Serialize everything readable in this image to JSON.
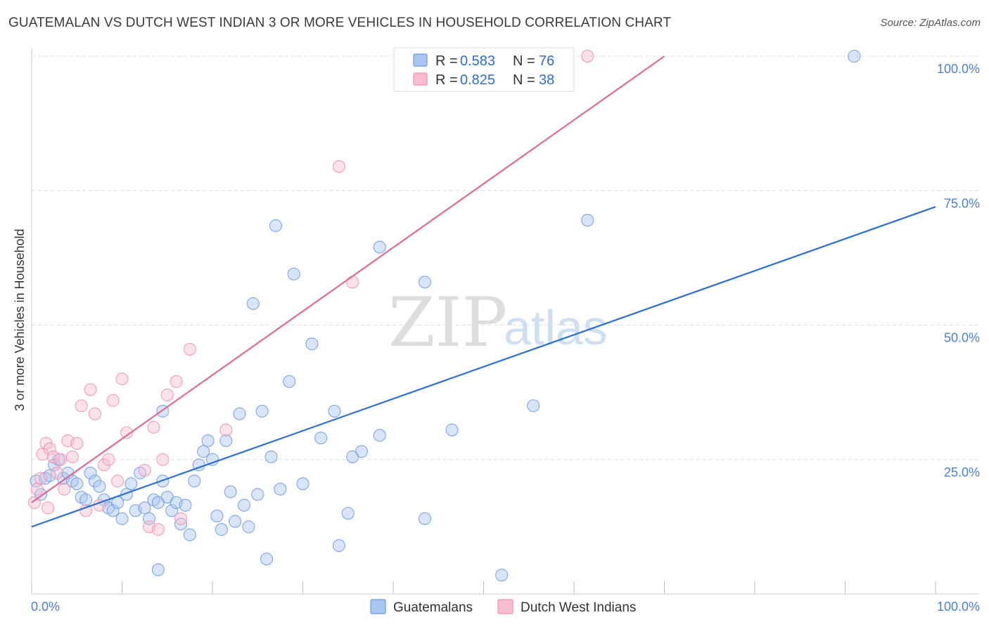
{
  "title": "GUATEMALAN VS DUTCH WEST INDIAN 3 OR MORE VEHICLES IN HOUSEHOLD CORRELATION CHART",
  "source": "Source: ZipAtlas.com",
  "watermark": {
    "zip": "ZIP",
    "atlas": "atlas"
  },
  "chart_data": {
    "type": "scatter",
    "xlabel": "",
    "ylabel": "3 or more Vehicles in Household",
    "xlim": [
      0,
      100
    ],
    "ylim": [
      0,
      100
    ],
    "x_tick_labels": {
      "left": "0.0%",
      "right": "100.0%"
    },
    "y_ticks": [
      {
        "value": 25,
        "label": "25.0%"
      },
      {
        "value": 50,
        "label": "50.0%"
      },
      {
        "value": 75,
        "label": "75.0%"
      },
      {
        "value": 100,
        "label": "100.0%"
      }
    ],
    "grid": true,
    "legend_position": "top-center",
    "series": [
      {
        "name": "Guatemalans",
        "color": "#6a9ae0",
        "fill": "#a8c6f0",
        "line_color": "#2b6fd0",
        "R": "0.583",
        "N": "76",
        "trend": {
          "x0": 0,
          "y0": 12.5,
          "x1": 100,
          "y1": 72
        },
        "points": [
          [
            0.5,
            21
          ],
          [
            1.0,
            18.5
          ],
          [
            1.5,
            21.5
          ],
          [
            2.0,
            22
          ],
          [
            2.5,
            24
          ],
          [
            3.0,
            25
          ],
          [
            3.5,
            21.5
          ],
          [
            4.0,
            22.5
          ],
          [
            4.5,
            21
          ],
          [
            5.0,
            20.5
          ],
          [
            5.5,
            18
          ],
          [
            6.0,
            17.5
          ],
          [
            6.5,
            22.5
          ],
          [
            7.0,
            21
          ],
          [
            7.5,
            20
          ],
          [
            8.0,
            17.5
          ],
          [
            8.5,
            16
          ],
          [
            9.0,
            15.5
          ],
          [
            9.5,
            17
          ],
          [
            10.0,
            14
          ],
          [
            10.5,
            18.5
          ],
          [
            11.0,
            20.5
          ],
          [
            11.5,
            15.5
          ],
          [
            12.0,
            22.5
          ],
          [
            12.5,
            16
          ],
          [
            13.0,
            14
          ],
          [
            13.5,
            17.5
          ],
          [
            14.0,
            17
          ],
          [
            14.5,
            34
          ],
          [
            14.5,
            21
          ],
          [
            15.0,
            18
          ],
          [
            15.5,
            15.5
          ],
          [
            16.0,
            17
          ],
          [
            16.5,
            13
          ],
          [
            17.0,
            16.5
          ],
          [
            17.5,
            11
          ],
          [
            18.0,
            21
          ],
          [
            18.5,
            24
          ],
          [
            19.0,
            26.5
          ],
          [
            19.5,
            28.5
          ],
          [
            20.0,
            25
          ],
          [
            20.5,
            14.5
          ],
          [
            21.0,
            12
          ],
          [
            21.5,
            28.5
          ],
          [
            22.0,
            19
          ],
          [
            22.5,
            13.5
          ],
          [
            23.0,
            33.5
          ],
          [
            23.5,
            16.5
          ],
          [
            24.0,
            12.5
          ],
          [
            24.5,
            54
          ],
          [
            25.0,
            18.5
          ],
          [
            25.5,
            34
          ],
          [
            26.0,
            6.5
          ],
          [
            26.5,
            25.5
          ],
          [
            27.0,
            68.5
          ],
          [
            27.5,
            19.5
          ],
          [
            28.5,
            39.5
          ],
          [
            29.0,
            59.5
          ],
          [
            30.0,
            20.5
          ],
          [
            31.0,
            46.5
          ],
          [
            32.0,
            29
          ],
          [
            33.5,
            34
          ],
          [
            34.0,
            9
          ],
          [
            35.0,
            15
          ],
          [
            35.5,
            25.5
          ],
          [
            36.5,
            26.5
          ],
          [
            38.5,
            64.5
          ],
          [
            38.5,
            29.5
          ],
          [
            43.5,
            58
          ],
          [
            43.5,
            14
          ],
          [
            46.5,
            30.5
          ],
          [
            52.0,
            3.5
          ],
          [
            55.5,
            35
          ],
          [
            61.5,
            69.5
          ],
          [
            91.0,
            100
          ],
          [
            14.0,
            4.5
          ]
        ]
      },
      {
        "name": "Dutch West Indians",
        "color": "#ee8fb0",
        "fill": "#f7bcd0",
        "line_color": "#e06a92",
        "R": "0.825",
        "N": "38",
        "trend": {
          "x0": 0,
          "y0": 17,
          "x1": 70,
          "y1": 100
        },
        "points": [
          [
            0.3,
            17
          ],
          [
            0.6,
            19.5
          ],
          [
            1.0,
            21.5
          ],
          [
            1.2,
            26
          ],
          [
            1.6,
            28
          ],
          [
            2.0,
            27
          ],
          [
            2.4,
            25.5
          ],
          [
            2.8,
            22.5
          ],
          [
            3.2,
            25
          ],
          [
            3.6,
            19.5
          ],
          [
            4.0,
            28.5
          ],
          [
            4.5,
            25.5
          ],
          [
            5.0,
            28
          ],
          [
            5.5,
            35
          ],
          [
            6.0,
            15.5
          ],
          [
            6.5,
            38
          ],
          [
            7.0,
            33.5
          ],
          [
            7.5,
            16.5
          ],
          [
            8.0,
            24
          ],
          [
            8.5,
            25
          ],
          [
            9.0,
            36
          ],
          [
            9.5,
            21
          ],
          [
            10.0,
            40
          ],
          [
            10.5,
            30
          ],
          [
            12.5,
            23
          ],
          [
            13.0,
            12.5
          ],
          [
            13.5,
            31
          ],
          [
            14.0,
            12
          ],
          [
            14.5,
            25
          ],
          [
            15.0,
            37
          ],
          [
            16.0,
            39.5
          ],
          [
            16.5,
            14
          ],
          [
            17.5,
            45.5
          ],
          [
            21.5,
            30.5
          ],
          [
            34.0,
            79.5
          ],
          [
            35.5,
            58
          ],
          [
            61.5,
            100
          ],
          [
            1.8,
            16
          ]
        ]
      }
    ]
  },
  "legend_bottom": [
    {
      "label": "Guatemalans"
    },
    {
      "label": "Dutch West Indians"
    }
  ],
  "legend_top": {
    "r_label": "R = ",
    "n_label": "N = "
  }
}
